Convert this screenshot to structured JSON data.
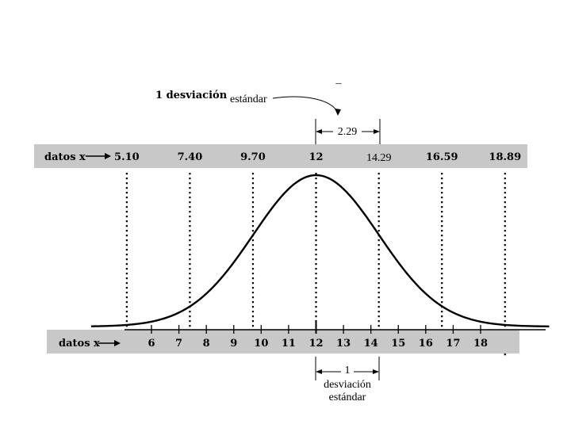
{
  "top_annotation": {
    "mark": "_",
    "label_bold": "1  desviación",
    "label_regular": "estándar",
    "value": "2.29"
  },
  "top_band": {
    "label": "datos  x",
    "values": [
      "5.10",
      "7.40",
      "9.70",
      "12",
      "14.29",
      "16.59",
      "18.89"
    ]
  },
  "bottom_axis": {
    "label": "datos  x",
    "ticks": [
      "6",
      "7",
      "8",
      "9",
      "10",
      "11",
      "12",
      "13",
      "14",
      "15",
      "16",
      "17",
      "18"
    ]
  },
  "bottom_annotation": {
    "number": "1",
    "line1": "desviación",
    "line2": "estándar"
  },
  "chart_data": {
    "type": "line",
    "mean": 12,
    "std_dev": 2.29,
    "x_range": [
      3.8,
      20.5
    ],
    "marked_values": [
      5.1,
      7.4,
      9.7,
      12,
      14.29,
      16.59,
      18.89
    ],
    "axis_ticks": [
      6,
      7,
      8,
      9,
      10,
      11,
      12,
      13,
      14,
      15,
      16,
      17,
      18
    ],
    "colors": {
      "band": "#c8c8c8",
      "curve": "#000000",
      "text": "#000000"
    }
  }
}
